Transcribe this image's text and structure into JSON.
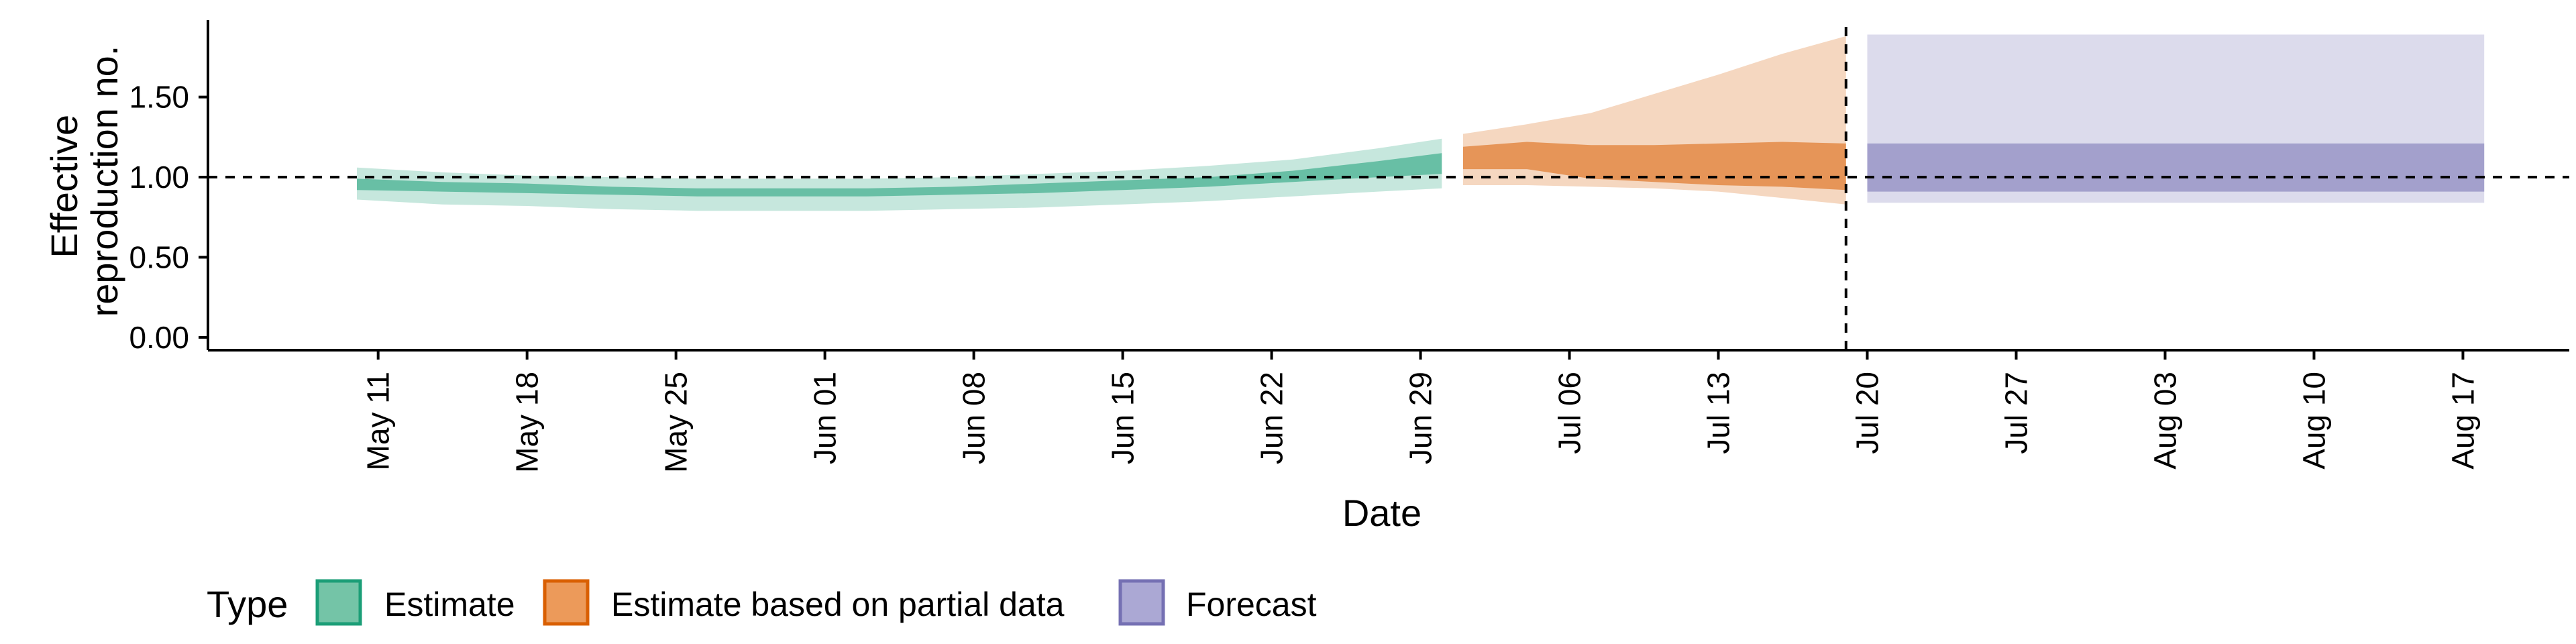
{
  "chart_data": {
    "type": "area",
    "xlabel": "Date",
    "ylabel_lines": [
      "Effective",
      "reproduction no."
    ],
    "x_range": [
      "2020-05-03",
      "2020-08-22"
    ],
    "ylim": [
      -0.08,
      1.98
    ],
    "y_ticks": [
      {
        "value": 0.0,
        "label": "0.00"
      },
      {
        "value": 0.5,
        "label": "0.50"
      },
      {
        "value": 1.0,
        "label": "1.00"
      },
      {
        "value": 1.5,
        "label": "1.50"
      }
    ],
    "x_ticks": [
      {
        "date": "2020-05-11",
        "label": "May 11"
      },
      {
        "date": "2020-05-18",
        "label": "May 18"
      },
      {
        "date": "2020-05-25",
        "label": "May 25"
      },
      {
        "date": "2020-06-01",
        "label": "Jun 01"
      },
      {
        "date": "2020-06-08",
        "label": "Jun 08"
      },
      {
        "date": "2020-06-15",
        "label": "Jun 15"
      },
      {
        "date": "2020-06-22",
        "label": "Jun 22"
      },
      {
        "date": "2020-06-29",
        "label": "Jun 29"
      },
      {
        "date": "2020-07-06",
        "label": "Jul 06"
      },
      {
        "date": "2020-07-13",
        "label": "Jul 13"
      },
      {
        "date": "2020-07-20",
        "label": "Jul 20"
      },
      {
        "date": "2020-07-27",
        "label": "Jul 27"
      },
      {
        "date": "2020-08-03",
        "label": "Aug 03"
      },
      {
        "date": "2020-08-10",
        "label": "Aug 10"
      },
      {
        "date": "2020-08-17",
        "label": "Aug 17"
      }
    ],
    "reference_hline": 1.0,
    "reference_vline": "2020-07-19",
    "legend": {
      "title": "Type",
      "placement": "bottom-left",
      "entries": [
        {
          "label": "Estimate"
        },
        {
          "label": "Estimate based on partial data"
        },
        {
          "label": "Forecast"
        }
      ]
    },
    "series": [
      {
        "name": "Estimate",
        "color": "#1b9e77",
        "fill_color": "#1b9e77",
        "outer_opacity": 0.25,
        "inner_opacity": 0.55,
        "points": [
          {
            "date": "2020-05-10",
            "lower90": 0.86,
            "upper90": 1.06,
            "lower50": 0.92,
            "upper50": 0.99
          },
          {
            "date": "2020-05-14",
            "lower90": 0.83,
            "upper90": 1.03,
            "lower50": 0.91,
            "upper50": 0.97
          },
          {
            "date": "2020-05-18",
            "lower90": 0.82,
            "upper90": 1.01,
            "lower50": 0.9,
            "upper50": 0.96
          },
          {
            "date": "2020-05-22",
            "lower90": 0.8,
            "upper90": 1.0,
            "lower50": 0.89,
            "upper50": 0.94
          },
          {
            "date": "2020-05-26",
            "lower90": 0.79,
            "upper90": 0.99,
            "lower50": 0.88,
            "upper50": 0.93
          },
          {
            "date": "2020-05-30",
            "lower90": 0.79,
            "upper90": 0.99,
            "lower50": 0.88,
            "upper50": 0.93
          },
          {
            "date": "2020-06-03",
            "lower90": 0.79,
            "upper90": 0.99,
            "lower50": 0.88,
            "upper50": 0.93
          },
          {
            "date": "2020-06-07",
            "lower90": 0.8,
            "upper90": 1.0,
            "lower50": 0.89,
            "upper50": 0.94
          },
          {
            "date": "2020-06-11",
            "lower90": 0.81,
            "upper90": 1.02,
            "lower50": 0.9,
            "upper50": 0.96
          },
          {
            "date": "2020-06-15",
            "lower90": 0.83,
            "upper90": 1.04,
            "lower50": 0.92,
            "upper50": 0.98
          },
          {
            "date": "2020-06-19",
            "lower90": 0.85,
            "upper90": 1.07,
            "lower50": 0.94,
            "upper50": 1.0
          },
          {
            "date": "2020-06-23",
            "lower90": 0.88,
            "upper90": 1.11,
            "lower50": 0.97,
            "upper50": 1.04
          },
          {
            "date": "2020-06-27",
            "lower90": 0.91,
            "upper90": 1.18,
            "lower50": 1.0,
            "upper50": 1.1
          },
          {
            "date": "2020-06-30",
            "lower90": 0.93,
            "upper90": 1.24,
            "lower50": 1.02,
            "upper50": 1.15
          }
        ]
      },
      {
        "name": "Estimate based on partial data",
        "color": "#d95f02",
        "fill_color": "#d95f02",
        "outer_opacity": 0.25,
        "inner_opacity": 0.55,
        "points": [
          {
            "date": "2020-07-01",
            "lower90": 0.95,
            "upper90": 1.27,
            "lower50": 1.05,
            "upper50": 1.19
          },
          {
            "date": "2020-07-04",
            "lower90": 0.95,
            "upper90": 1.33,
            "lower50": 1.05,
            "upper50": 1.22
          },
          {
            "date": "2020-07-07",
            "lower90": 0.94,
            "upper90": 1.4,
            "lower50": 0.99,
            "upper50": 1.2
          },
          {
            "date": "2020-07-10",
            "lower90": 0.93,
            "upper90": 1.52,
            "lower50": 0.97,
            "upper50": 1.2
          },
          {
            "date": "2020-07-13",
            "lower90": 0.91,
            "upper90": 1.64,
            "lower50": 0.95,
            "upper50": 1.21
          },
          {
            "date": "2020-07-16",
            "lower90": 0.87,
            "upper90": 1.77,
            "lower50": 0.94,
            "upper50": 1.22
          },
          {
            "date": "2020-07-19",
            "lower90": 0.83,
            "upper90": 1.88,
            "lower50": 0.92,
            "upper50": 1.21
          }
        ]
      },
      {
        "name": "Forecast",
        "color": "#7570b3",
        "fill_color": "#7570b3",
        "outer_opacity": 0.25,
        "inner_opacity": 0.55,
        "points": [
          {
            "date": "2020-07-20",
            "lower90": 0.84,
            "upper90": 1.89,
            "lower50": 0.91,
            "upper50": 1.21
          },
          {
            "date": "2020-08-18",
            "lower90": 0.84,
            "upper90": 1.89,
            "lower50": 0.91,
            "upper50": 1.21
          }
        ]
      }
    ]
  }
}
